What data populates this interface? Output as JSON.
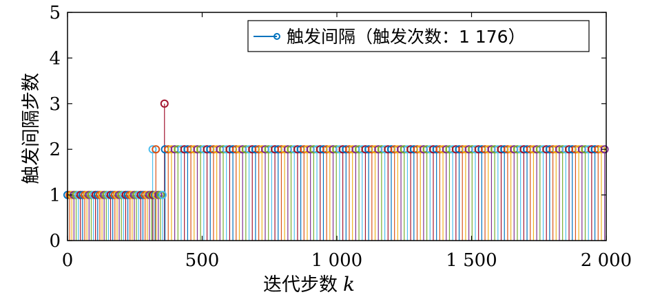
{
  "chart_data": {
    "type": "stem",
    "xlabel": "迭代步数",
    "xlabel_var": "k",
    "ylabel": "触发间隔步数",
    "xlim": [
      0,
      2000
    ],
    "ylim": [
      0,
      5
    ],
    "xticks": [
      0,
      500,
      1000,
      1500,
      2000
    ],
    "xtick_labels": [
      "0",
      "500",
      "1 000",
      "1 500",
      "2 000"
    ],
    "yticks": [
      0,
      1,
      2,
      3,
      4,
      5
    ],
    "ytick_labels": [
      "0",
      "1",
      "2",
      "3",
      "4",
      "5"
    ],
    "grid": false,
    "legend_position": "top-right",
    "series": [
      {
        "name": "触发间隔（触发次数：1 176）",
        "segments": [
          {
            "x_start": 0,
            "x_end": 315,
            "value": 1
          },
          {
            "x_start": 316,
            "x_end": 316,
            "value": 2
          },
          {
            "x_start": 317,
            "x_end": 327,
            "value": 1
          },
          {
            "x_start": 328,
            "x_end": 328,
            "value": 2
          },
          {
            "x_start": 329,
            "x_end": 359,
            "value": 1
          },
          {
            "x_start": 360,
            "x_end": 360,
            "value": 3
          },
          {
            "x_start": 362,
            "x_end": 2000,
            "value": 2
          }
        ],
        "trigger_count": 1176
      }
    ],
    "colors": [
      "#0072BD",
      "#D95319",
      "#EDB120",
      "#7E2F8E",
      "#77AC30",
      "#4DBEEE",
      "#A2142F"
    ]
  }
}
